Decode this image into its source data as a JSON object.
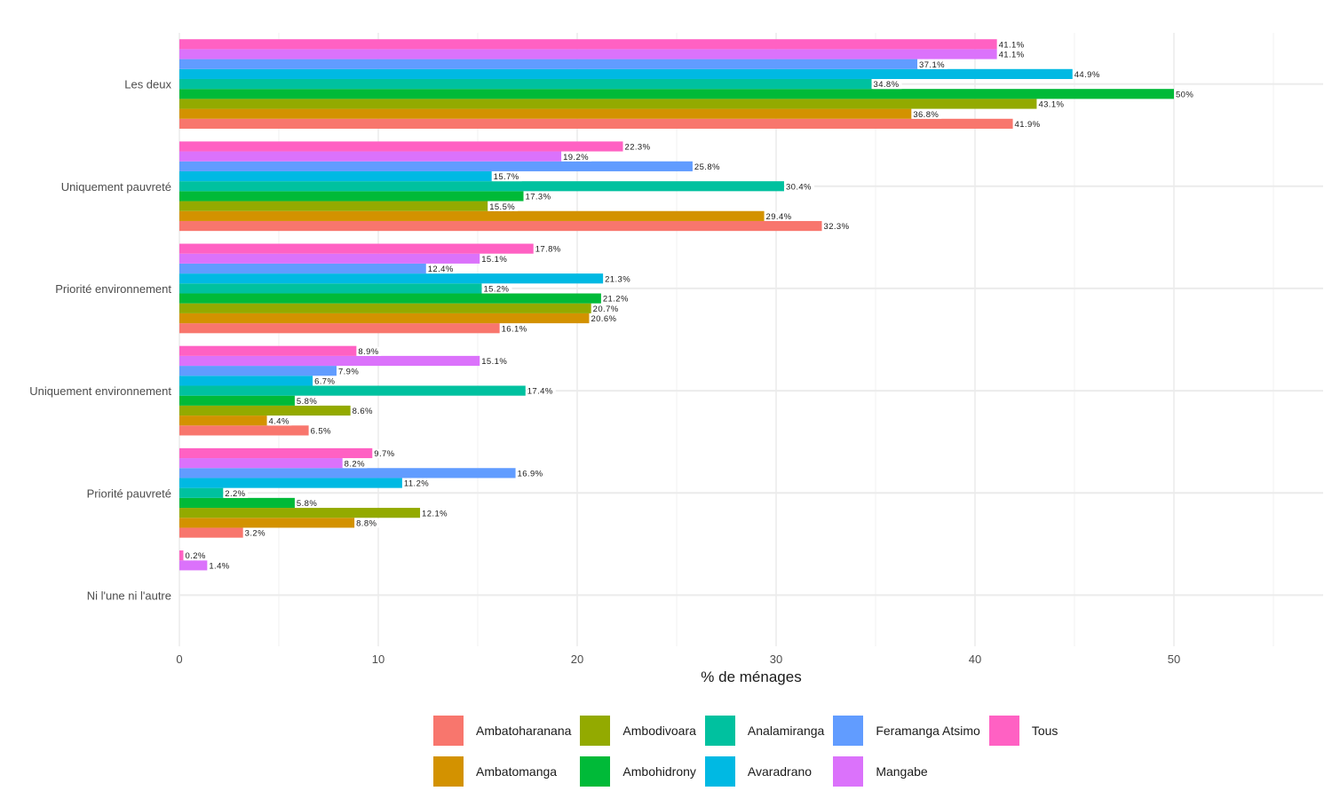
{
  "chart_data": {
    "type": "bar",
    "orientation": "horizontal",
    "title": "",
    "xlabel": "% de ménages",
    "ylabel": "",
    "xlim": [
      0,
      57.5
    ],
    "xticks": [
      0,
      10,
      20,
      30,
      40,
      50
    ],
    "grid": true,
    "legend_position": "bottom",
    "categories": [
      "Les deux",
      "Uniquement pauvreté",
      "Priorité environnement",
      "Uniquement environnement",
      "Priorité pauvreté",
      "Ni l'une ni l'autre"
    ],
    "series": [
      {
        "name": "Ambatoharanana",
        "color": "#F8766D",
        "values": [
          41.9,
          32.3,
          16.1,
          6.5,
          3.2,
          null
        ],
        "labels": [
          "41.9%",
          "32.3%",
          "16.1%",
          "6.5%",
          "3.2%",
          null
        ]
      },
      {
        "name": "Ambatomanga",
        "color": "#D39200",
        "values": [
          36.8,
          29.4,
          20.6,
          4.4,
          8.8,
          null
        ],
        "labels": [
          "36.8%",
          "29.4%",
          "20.6%",
          "4.4%",
          "8.8%",
          null
        ]
      },
      {
        "name": "Ambodivoara",
        "color": "#93AA00",
        "values": [
          43.1,
          15.5,
          20.7,
          8.6,
          12.1,
          null
        ],
        "labels": [
          "43.1%",
          "15.5%",
          "20.7%",
          "8.6%",
          "12.1%",
          null
        ]
      },
      {
        "name": "Ambohidrony",
        "color": "#00BA38",
        "values": [
          50,
          17.3,
          21.2,
          5.8,
          5.8,
          null
        ],
        "labels": [
          "50%",
          "17.3%",
          "21.2%",
          "5.8%",
          "5.8%",
          null
        ]
      },
      {
        "name": "Analamiranga",
        "color": "#00C19F",
        "values": [
          34.8,
          30.4,
          15.2,
          17.4,
          2.2,
          null
        ],
        "labels": [
          "34.8%",
          "30.4%",
          "15.2%",
          "17.4%",
          "2.2%",
          null
        ]
      },
      {
        "name": "Avaradrano",
        "color": "#00B9E3",
        "values": [
          44.9,
          15.7,
          21.3,
          6.7,
          11.2,
          null
        ],
        "labels": [
          "44.9%",
          "15.7%",
          "21.3%",
          "6.7%",
          "11.2%",
          null
        ]
      },
      {
        "name": "Feramanga Atsimo",
        "color": "#619CFF",
        "values": [
          37.1,
          25.8,
          12.4,
          7.9,
          16.9,
          null
        ],
        "labels": [
          "37.1%",
          "25.8%",
          "12.4%",
          "7.9%",
          "16.9%",
          null
        ]
      },
      {
        "name": "Mangabe",
        "color": "#DB72FB",
        "values": [
          41.1,
          19.2,
          15.1,
          15.1,
          8.2,
          1.4
        ],
        "labels": [
          "41.1%",
          "19.2%",
          "15.1%",
          "15.1%",
          "8.2%",
          "1.4%"
        ]
      },
      {
        "name": "Tous",
        "color": "#FF61C3",
        "values": [
          41.1,
          22.3,
          17.8,
          8.9,
          9.7,
          0.2
        ],
        "labels": [
          "41.1%",
          "22.3%",
          "17.8%",
          "8.9%",
          "9.7%",
          "0.2%"
        ]
      }
    ]
  }
}
